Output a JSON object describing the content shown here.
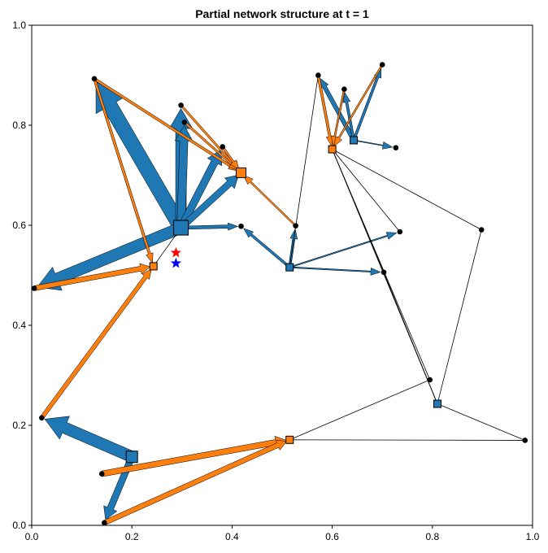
{
  "chart_data": {
    "type": "network",
    "title": "Partial network structure at t = 1",
    "xlim": [
      0,
      1
    ],
    "ylim": [
      0,
      1
    ],
    "xticks": [
      "0.0",
      "0.2",
      "0.4",
      "0.6",
      "0.8",
      "1.0"
    ],
    "yticks": [
      "0.0",
      "0.2",
      "0.4",
      "0.6",
      "0.8",
      "1.0"
    ],
    "grid": false,
    "colors": {
      "blue": "#1f77b4",
      "orange": "#ff7f0e",
      "node": "#000000",
      "star_red": "#ff0000",
      "star_blue": "#0000ff"
    },
    "nodes": [
      {
        "id": "A",
        "x": 0.125,
        "y": 0.893,
        "marker": "dot"
      },
      {
        "id": "B",
        "x": 0.298,
        "y": 0.84,
        "marker": "dot"
      },
      {
        "id": "C",
        "x": 0.305,
        "y": 0.806,
        "marker": "dot"
      },
      {
        "id": "D",
        "x": 0.381,
        "y": 0.757,
        "marker": "dot"
      },
      {
        "id": "E",
        "x": 0.418,
        "y": 0.598,
        "marker": "dot"
      },
      {
        "id": "F",
        "x": 0.527,
        "y": 0.599,
        "marker": "dot"
      },
      {
        "id": "G",
        "x": 0.005,
        "y": 0.474,
        "marker": "dot"
      },
      {
        "id": "H",
        "x": 0.02,
        "y": 0.215,
        "marker": "dot"
      },
      {
        "id": "I",
        "x": 0.14,
        "y": 0.103,
        "marker": "dot"
      },
      {
        "id": "J",
        "x": 0.145,
        "y": 0.005,
        "marker": "dot"
      },
      {
        "id": "K",
        "x": 0.572,
        "y": 0.9,
        "marker": "dot"
      },
      {
        "id": "L",
        "x": 0.624,
        "y": 0.872,
        "marker": "dot"
      },
      {
        "id": "M",
        "x": 0.7,
        "y": 0.921,
        "marker": "dot"
      },
      {
        "id": "N",
        "x": 0.727,
        "y": 0.755,
        "marker": "dot"
      },
      {
        "id": "O",
        "x": 0.735,
        "y": 0.587,
        "marker": "dot"
      },
      {
        "id": "P",
        "x": 0.703,
        "y": 0.506,
        "marker": "dot"
      },
      {
        "id": "Q",
        "x": 0.898,
        "y": 0.591,
        "marker": "dot"
      },
      {
        "id": "R",
        "x": 0.795,
        "y": 0.291,
        "marker": "dot"
      },
      {
        "id": "S",
        "x": 0.985,
        "y": 0.17,
        "marker": "dot"
      },
      {
        "id": "H1",
        "x": 0.298,
        "y": 0.595,
        "marker": "square",
        "color": "blue",
        "size": 18
      },
      {
        "id": "H2",
        "x": 0.418,
        "y": 0.705,
        "marker": "square",
        "color": "orange",
        "size": 12
      },
      {
        "id": "H3",
        "x": 0.243,
        "y": 0.518,
        "marker": "square",
        "color": "orange",
        "size": 9
      },
      {
        "id": "H4",
        "x": 0.2,
        "y": 0.137,
        "marker": "square",
        "color": "blue",
        "size": 14
      },
      {
        "id": "H5",
        "x": 0.515,
        "y": 0.171,
        "marker": "square",
        "color": "orange",
        "size": 9
      },
      {
        "id": "H6",
        "x": 0.515,
        "y": 0.516,
        "marker": "square",
        "color": "blue",
        "size": 9
      },
      {
        "id": "H7",
        "x": 0.643,
        "y": 0.77,
        "marker": "square",
        "color": "blue",
        "size": 9
      },
      {
        "id": "H8",
        "x": 0.6,
        "y": 0.752,
        "marker": "square",
        "color": "orange",
        "size": 9
      },
      {
        "id": "H9",
        "x": 0.81,
        "y": 0.243,
        "marker": "square",
        "color": "blue",
        "size": 9
      }
    ],
    "stars": [
      {
        "x": 0.288,
        "y": 0.545,
        "color": "star_red"
      },
      {
        "x": 0.288,
        "y": 0.524,
        "color": "star_blue"
      }
    ],
    "edges": [
      {
        "from": "H1",
        "to": "A",
        "color": "blue",
        "width": 18
      },
      {
        "from": "H1",
        "to": "B",
        "color": "blue",
        "width": 13
      },
      {
        "from": "H1",
        "to": "C",
        "color": "blue",
        "width": 10
      },
      {
        "from": "H1",
        "to": "D",
        "color": "blue",
        "width": 9
      },
      {
        "from": "H1",
        "to": "H2",
        "color": "blue",
        "width": 8
      },
      {
        "from": "H1",
        "to": "E",
        "color": "blue",
        "width": 4
      },
      {
        "from": "H1",
        "to": "G",
        "color": "blue",
        "width": 14
      },
      {
        "from": "A",
        "to": "H2",
        "color": "orange",
        "width": 3
      },
      {
        "from": "B",
        "to": "H2",
        "color": "orange",
        "width": 2.5
      },
      {
        "from": "C",
        "to": "H2",
        "color": "orange",
        "width": 2.5
      },
      {
        "from": "D",
        "to": "H2",
        "color": "orange",
        "width": 2.5
      },
      {
        "from": "F",
        "to": "H2",
        "color": "orange",
        "width": 2
      },
      {
        "from": "A",
        "to": "H3",
        "color": "orange",
        "width": 3
      },
      {
        "from": "G",
        "to": "H3",
        "color": "orange",
        "width": 6
      },
      {
        "from": "H",
        "to": "H3",
        "color": "orange",
        "width": 5
      },
      {
        "from": "H1",
        "to": "H3",
        "color": "black",
        "width": 1
      },
      {
        "from": "H4",
        "to": "H",
        "color": "blue",
        "width": 14
      },
      {
        "from": "H4",
        "to": "J",
        "color": "blue",
        "width": 8
      },
      {
        "from": "I",
        "to": "H5",
        "color": "orange",
        "width": 7
      },
      {
        "from": "J",
        "to": "H5",
        "color": "orange",
        "width": 6
      },
      {
        "from": "H5",
        "to": "R",
        "color": "black",
        "width": 1
      },
      {
        "from": "H5",
        "to": "S",
        "color": "black",
        "width": 1
      },
      {
        "from": "H6",
        "to": "E",
        "color": "blue",
        "width": 3
      },
      {
        "from": "H6",
        "to": "F",
        "color": "blue",
        "width": 3
      },
      {
        "from": "H6",
        "to": "O",
        "color": "blue",
        "width": 1.5
      },
      {
        "from": "H6",
        "to": "P",
        "color": "blue",
        "width": 1.5
      },
      {
        "from": "H6",
        "to": "K",
        "color": "black",
        "width": 1
      },
      {
        "from": "H7",
        "to": "K",
        "color": "blue",
        "width": 5
      },
      {
        "from": "H7",
        "to": "L",
        "color": "blue",
        "width": 3
      },
      {
        "from": "H7",
        "to": "M",
        "color": "blue",
        "width": 3
      },
      {
        "from": "H7",
        "to": "N",
        "color": "blue",
        "width": 1
      },
      {
        "from": "K",
        "to": "H8",
        "color": "orange",
        "width": 3
      },
      {
        "from": "L",
        "to": "H8",
        "color": "orange",
        "width": 2
      },
      {
        "from": "M",
        "to": "H8",
        "color": "orange",
        "width": 2
      },
      {
        "from": "H8",
        "to": "O",
        "color": "black",
        "width": 1
      },
      {
        "from": "H8",
        "to": "Q",
        "color": "black",
        "width": 1
      },
      {
        "from": "H8",
        "to": "P",
        "color": "black",
        "width": 1
      },
      {
        "from": "H8",
        "to": "R",
        "color": "black",
        "width": 1
      },
      {
        "from": "H8",
        "to": "H9",
        "color": "black",
        "width": 1
      },
      {
        "from": "Q",
        "to": "H9",
        "color": "black",
        "width": 1
      },
      {
        "from": "P",
        "to": "H9",
        "color": "black",
        "width": 1
      },
      {
        "from": "H9",
        "to": "S",
        "color": "black",
        "width": 1
      }
    ]
  }
}
